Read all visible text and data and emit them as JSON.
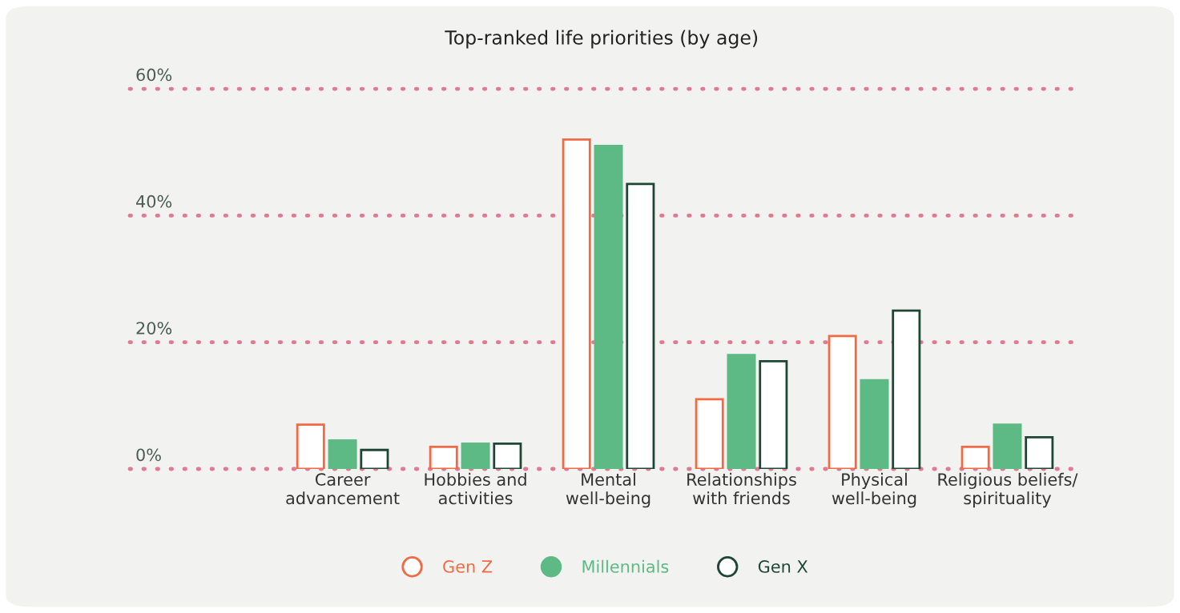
{
  "chart_data": {
    "type": "bar",
    "title": "Top-ranked life priorities (by age)",
    "categories": [
      "Career\nadvancement",
      "Hobbies and\nactivities",
      "Mental\nwell-being",
      "Relationships\nwith friends",
      "Physical\nwell-being",
      "Religious beliefs/\nspirituality"
    ],
    "series": [
      {
        "name": "Gen Z",
        "color": "#f06a44",
        "values": [
          7,
          3.5,
          52,
          11,
          21,
          3.5
        ]
      },
      {
        "name": "Millennials",
        "color": "#5dba84",
        "values": [
          4.5,
          4,
          51,
          18,
          14,
          7
        ]
      },
      {
        "name": "Gen X",
        "color": "#1e4636",
        "values": [
          3,
          4,
          45,
          17,
          25,
          5
        ]
      }
    ],
    "ylim": [
      0,
      60
    ],
    "yticks": [
      {
        "value": 0,
        "label": "0%"
      },
      {
        "value": 20,
        "label": "20%"
      },
      {
        "value": 40,
        "label": "40%"
      },
      {
        "value": 60,
        "label": "60%"
      }
    ],
    "grid": "y",
    "legend": "bottom"
  }
}
